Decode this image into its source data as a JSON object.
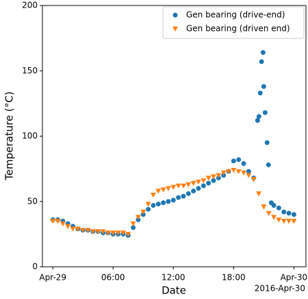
{
  "chart_data": {
    "type": "scatter",
    "x_label": "Date",
    "y_label": "Temperature (°C)",
    "x_offset_label": "2016-Apr-30",
    "xlim": [
      "2016-04-28T22:58",
      "2016-04-30T01:12"
    ],
    "xticks": [
      {
        "value": "2016-04-29T00:00",
        "label": "Apr-29"
      },
      {
        "value": "2016-04-29T06:00",
        "label": "06:00"
      },
      {
        "value": "2016-04-29T12:00",
        "label": "12:00"
      },
      {
        "value": "2016-04-29T18:00",
        "label": "18:00"
      },
      {
        "value": "2016-04-30T00:00",
        "label": "Apr-30"
      }
    ],
    "ylim": [
      0,
      200
    ],
    "yticks": [
      0,
      50,
      100,
      150,
      200
    ],
    "legend": "upper right",
    "series": [
      {
        "name": "Gen bearing (drive-end)",
        "color": "#1f77b4",
        "marker": "circle",
        "x": [
          "2016-04-29T00:00",
          "2016-04-29T00:30",
          "2016-04-29T01:00",
          "2016-04-29T01:30",
          "2016-04-29T02:00",
          "2016-04-29T02:30",
          "2016-04-29T03:00",
          "2016-04-29T03:30",
          "2016-04-29T04:00",
          "2016-04-29T04:30",
          "2016-04-29T05:00",
          "2016-04-29T05:30",
          "2016-04-29T06:00",
          "2016-04-29T06:30",
          "2016-04-29T07:00",
          "2016-04-29T07:30",
          "2016-04-29T08:00",
          "2016-04-29T08:30",
          "2016-04-29T09:00",
          "2016-04-29T09:30",
          "2016-04-29T10:00",
          "2016-04-29T10:30",
          "2016-04-29T11:00",
          "2016-04-29T11:30",
          "2016-04-29T12:00",
          "2016-04-29T12:30",
          "2016-04-29T13:00",
          "2016-04-29T13:30",
          "2016-04-29T14:00",
          "2016-04-29T14:30",
          "2016-04-29T15:00",
          "2016-04-29T15:30",
          "2016-04-29T16:00",
          "2016-04-29T16:30",
          "2016-04-29T17:00",
          "2016-04-29T17:30",
          "2016-04-29T18:00",
          "2016-04-29T18:30",
          "2016-04-29T19:00",
          "2016-04-29T19:30",
          "2016-04-29T20:00",
          "2016-04-29T20:23",
          "2016-04-29T20:31",
          "2016-04-29T20:39",
          "2016-04-29T20:47",
          "2016-04-29T20:56",
          "2016-04-29T21:00",
          "2016-04-29T21:08",
          "2016-04-29T21:20",
          "2016-04-29T21:28",
          "2016-04-29T21:45",
          "2016-04-29T22:00",
          "2016-04-29T22:30",
          "2016-04-29T23:00",
          "2016-04-29T23:30",
          "2016-04-30T00:00"
        ],
        "values": [
          36,
          36,
          35,
          33,
          31,
          29,
          28,
          28,
          27,
          27,
          26,
          26,
          25,
          25,
          25,
          24,
          30,
          36,
          40,
          44,
          47,
          48,
          49,
          50,
          51,
          53,
          54,
          56,
          58,
          60,
          62,
          64,
          66,
          68,
          70,
          73,
          81,
          82,
          79,
          73,
          68,
          112,
          115,
          133,
          157,
          164,
          138,
          118,
          95,
          78,
          49,
          47,
          45,
          42,
          41,
          40
        ]
      },
      {
        "name": "Gen bearing (driven end)",
        "color": "#ff7f0e",
        "marker": "triangle-down",
        "x": [
          "2016-04-29T00:00",
          "2016-04-29T00:30",
          "2016-04-29T01:00",
          "2016-04-29T01:30",
          "2016-04-29T02:00",
          "2016-04-29T02:30",
          "2016-04-29T03:00",
          "2016-04-29T03:30",
          "2016-04-29T04:00",
          "2016-04-29T04:30",
          "2016-04-29T05:00",
          "2016-04-29T05:30",
          "2016-04-29T06:00",
          "2016-04-29T06:30",
          "2016-04-29T07:00",
          "2016-04-29T07:30",
          "2016-04-29T08:00",
          "2016-04-29T08:30",
          "2016-04-29T09:00",
          "2016-04-29T09:30",
          "2016-04-29T10:00",
          "2016-04-29T10:30",
          "2016-04-29T11:00",
          "2016-04-29T11:30",
          "2016-04-29T12:00",
          "2016-04-29T12:30",
          "2016-04-29T13:00",
          "2016-04-29T13:30",
          "2016-04-29T14:00",
          "2016-04-29T14:30",
          "2016-04-29T15:00",
          "2016-04-29T15:30",
          "2016-04-29T16:00",
          "2016-04-29T16:30",
          "2016-04-29T17:00",
          "2016-04-29T17:30",
          "2016-04-29T18:00",
          "2016-04-29T18:30",
          "2016-04-29T19:00",
          "2016-04-29T19:30",
          "2016-04-29T20:00",
          "2016-04-29T20:30",
          "2016-04-29T21:00",
          "2016-04-29T21:30",
          "2016-04-29T22:00",
          "2016-04-29T22:30",
          "2016-04-29T23:00",
          "2016-04-29T23:30",
          "2016-04-30T00:00"
        ],
        "values": [
          35,
          35,
          33,
          31,
          29,
          29,
          28,
          28,
          27,
          27,
          27,
          26,
          26,
          26,
          26,
          25,
          33,
          38,
          42,
          48,
          55,
          58,
          59,
          60,
          61,
          62,
          62,
          63,
          64,
          65,
          66,
          68,
          69,
          70,
          72,
          73,
          74,
          73,
          72,
          70,
          67,
          56,
          46,
          41,
          38,
          36,
          35,
          35,
          35
        ]
      }
    ]
  }
}
